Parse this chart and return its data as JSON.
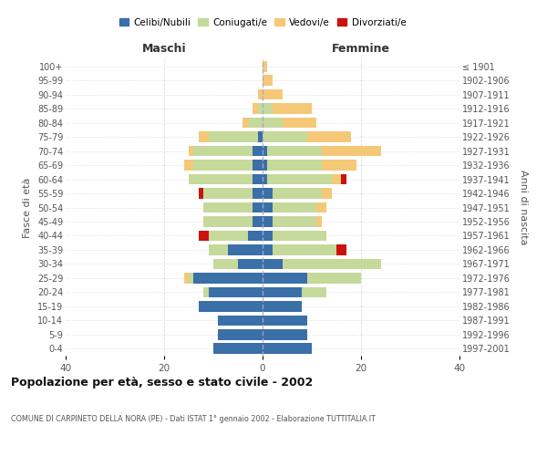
{
  "age_groups": [
    "0-4",
    "5-9",
    "10-14",
    "15-19",
    "20-24",
    "25-29",
    "30-34",
    "35-39",
    "40-44",
    "45-49",
    "50-54",
    "55-59",
    "60-64",
    "65-69",
    "70-74",
    "75-79",
    "80-84",
    "85-89",
    "90-94",
    "95-99",
    "100+"
  ],
  "birth_years": [
    "1997-2001",
    "1992-1996",
    "1987-1991",
    "1982-1986",
    "1977-1981",
    "1972-1976",
    "1967-1971",
    "1962-1966",
    "1957-1961",
    "1952-1956",
    "1947-1951",
    "1942-1946",
    "1937-1941",
    "1932-1936",
    "1927-1931",
    "1922-1926",
    "1917-1921",
    "1912-1916",
    "1907-1911",
    "1902-1906",
    "≤ 1901"
  ],
  "males": {
    "celibi": [
      10,
      9,
      9,
      13,
      11,
      14,
      5,
      7,
      3,
      2,
      2,
      2,
      2,
      2,
      2,
      1,
      0,
      0,
      0,
      0,
      0
    ],
    "coniugati": [
      0,
      0,
      0,
      0,
      1,
      1,
      5,
      4,
      8,
      10,
      10,
      10,
      13,
      12,
      12,
      10,
      3,
      1,
      0,
      0,
      0
    ],
    "vedovi": [
      0,
      0,
      0,
      0,
      0,
      1,
      0,
      0,
      0,
      0,
      0,
      0,
      0,
      2,
      1,
      2,
      1,
      1,
      1,
      0,
      0
    ],
    "divorziati": [
      0,
      0,
      0,
      0,
      0,
      0,
      0,
      0,
      2,
      0,
      0,
      1,
      0,
      0,
      0,
      0,
      0,
      0,
      0,
      0,
      0
    ]
  },
  "females": {
    "nubili": [
      10,
      9,
      9,
      8,
      8,
      9,
      4,
      2,
      2,
      2,
      2,
      2,
      1,
      1,
      1,
      0,
      0,
      0,
      0,
      0,
      0
    ],
    "coniugate": [
      0,
      0,
      0,
      0,
      5,
      11,
      20,
      13,
      11,
      9,
      9,
      10,
      13,
      11,
      11,
      9,
      4,
      2,
      0,
      0,
      0
    ],
    "vedove": [
      0,
      0,
      0,
      0,
      0,
      0,
      0,
      0,
      0,
      1,
      2,
      2,
      2,
      7,
      12,
      9,
      7,
      8,
      4,
      2,
      1
    ],
    "divorziate": [
      0,
      0,
      0,
      0,
      0,
      0,
      0,
      2,
      0,
      0,
      0,
      0,
      1,
      0,
      0,
      0,
      0,
      0,
      0,
      0,
      0
    ]
  },
  "colors": {
    "celibi": "#3a6fa8",
    "coniugati": "#c5d99a",
    "vedovi": "#f5c878",
    "divorziati": "#cc1111"
  },
  "title": "Popolazione per età, sesso e stato civile - 2002",
  "subtitle": "COMUNE DI CARPINETO DELLA NORA (PE) - Dati ISTAT 1° gennaio 2002 - Elaborazione TUTTITALIA.IT",
  "xlabel_left": "Maschi",
  "xlabel_right": "Femmine",
  "ylabel_left": "Fasce di età",
  "ylabel_right": "Anni di nascita",
  "xlim": 40,
  "background_color": "#ffffff",
  "grid_color": "#cccccc"
}
